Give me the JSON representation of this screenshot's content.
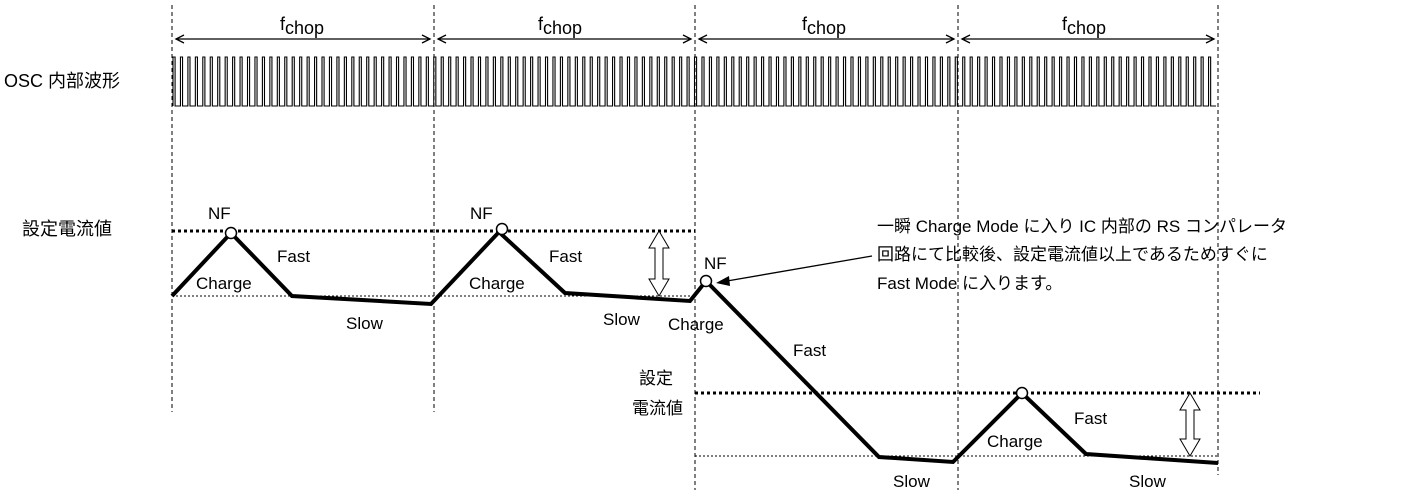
{
  "osc_label": "OSC 内部波形",
  "fchop": {
    "main": "f",
    "sub": "chop"
  },
  "setting_label": "設定電流値",
  "setting_label_lower_line1": "設定",
  "setting_label_lower_line2": "電流値",
  "nf": "NF",
  "charge": "Charge",
  "fast": "Fast",
  "slow": "Slow",
  "note": {
    "line1": "一瞬 Charge Mode に入り IC 内部の RS コンパレータ",
    "line2": "回路にて比較後、設定電流値以上であるためすぐに",
    "line3": "Fast Mode に入ります。"
  },
  "colors": {
    "line": "#000000",
    "background": "#ffffff"
  }
}
